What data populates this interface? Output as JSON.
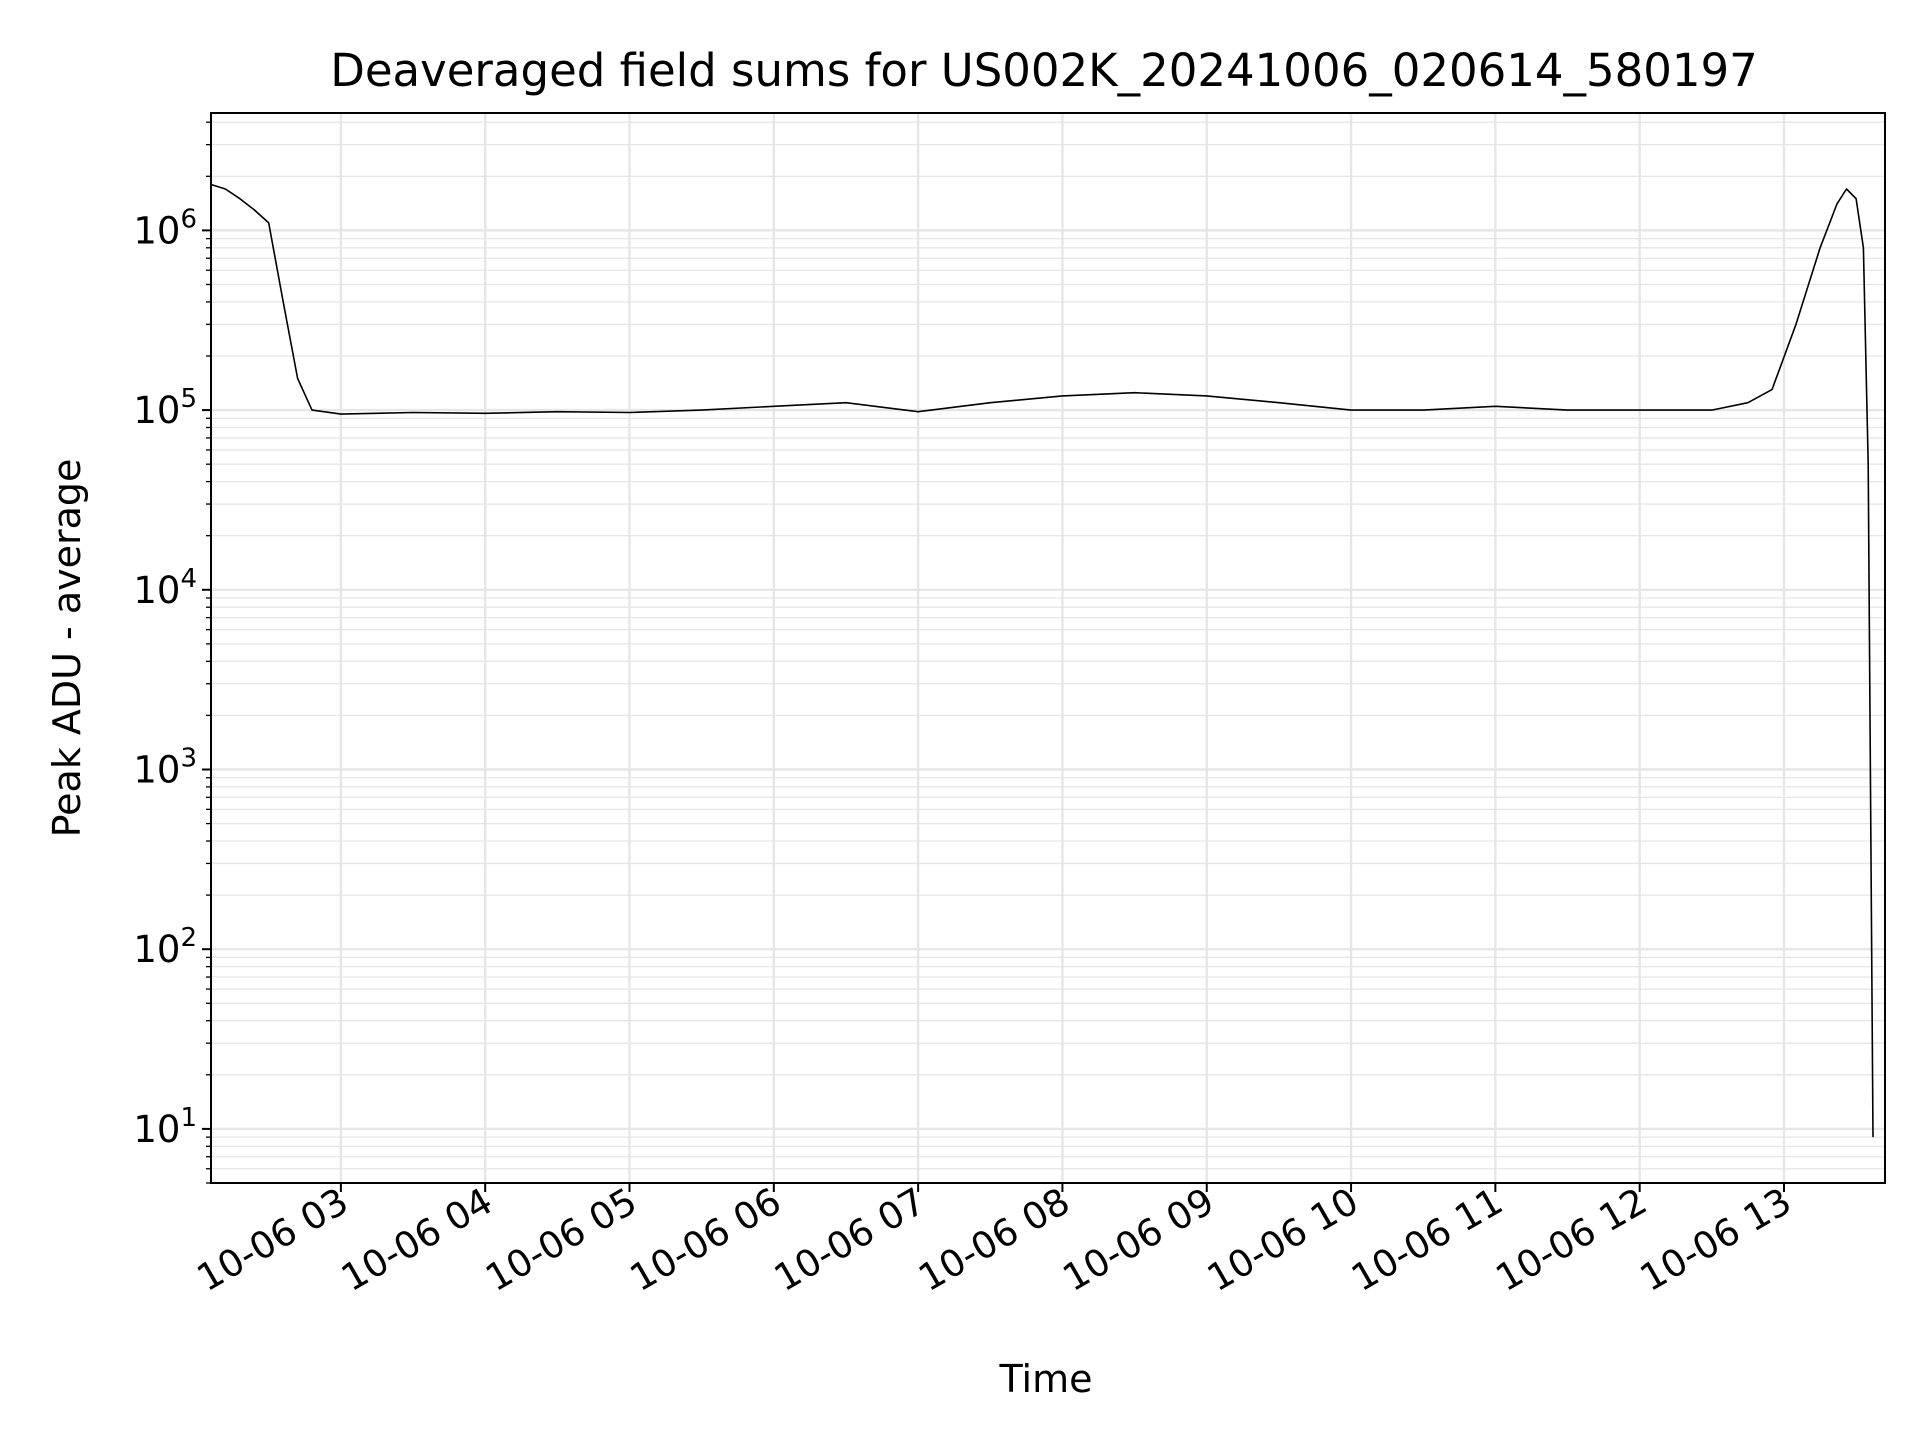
{
  "chart_data": {
    "type": "line",
    "title": "Deaveraged field sums for US002K_20241006_020614_580197",
    "xlabel": "Time",
    "ylabel": "Peak ADU - average",
    "yscale": "log",
    "grid": true,
    "line_color": "#000000",
    "grid_color": "#e6e6e6",
    "xlim": [
      "2024-10-06 02:06",
      "2024-10-06 13:42"
    ],
    "ylim": [
      5,
      4500000
    ],
    "x_ticks": [
      "10-06 03",
      "10-06 04",
      "10-06 05",
      "10-06 06",
      "10-06 07",
      "10-06 08",
      "10-06 09",
      "10-06 10",
      "10-06 11",
      "10-06 12",
      "10-06 13"
    ],
    "y_ticks": [
      {
        "base": "10",
        "exp": "1",
        "value": 10
      },
      {
        "base": "10",
        "exp": "2",
        "value": 100
      },
      {
        "base": "10",
        "exp": "3",
        "value": 1000
      },
      {
        "base": "10",
        "exp": "4",
        "value": 10000
      },
      {
        "base": "10",
        "exp": "5",
        "value": 100000
      },
      {
        "base": "10",
        "exp": "6",
        "value": 1000000
      }
    ],
    "series": [
      {
        "x": [
          "2024-10-06 02:06",
          "2024-10-06 02:12",
          "2024-10-06 02:18",
          "2024-10-06 02:24",
          "2024-10-06 02:30",
          "2024-10-06 02:36",
          "2024-10-06 02:42",
          "2024-10-06 02:48",
          "2024-10-06 03:00",
          "2024-10-06 03:30",
          "2024-10-06 04:00",
          "2024-10-06 04:30",
          "2024-10-06 05:00",
          "2024-10-06 05:30",
          "2024-10-06 06:00",
          "2024-10-06 06:30",
          "2024-10-06 07:00",
          "2024-10-06 07:30",
          "2024-10-06 08:00",
          "2024-10-06 08:30",
          "2024-10-06 09:00",
          "2024-10-06 09:30",
          "2024-10-06 10:00",
          "2024-10-06 10:30",
          "2024-10-06 11:00",
          "2024-10-06 11:30",
          "2024-10-06 12:00",
          "2024-10-06 12:30",
          "2024-10-06 12:45",
          "2024-10-06 12:55",
          "2024-10-06 13:05",
          "2024-10-06 13:15",
          "2024-10-06 13:22",
          "2024-10-06 13:26",
          "2024-10-06 13:30",
          "2024-10-06 13:33",
          "2024-10-06 13:35",
          "2024-10-06 13:37"
        ],
        "values": [
          1800000,
          1700000,
          1500000,
          1300000,
          1100000,
          400000,
          150000,
          100000,
          95000,
          97000,
          96000,
          98000,
          97000,
          100000,
          105000,
          110000,
          98000,
          110000,
          120000,
          125000,
          120000,
          110000,
          100000,
          100000,
          105000,
          100000,
          100000,
          100000,
          110000,
          130000,
          300000,
          800000,
          1400000,
          1700000,
          1500000,
          800000,
          50000,
          9
        ]
      }
    ]
  }
}
